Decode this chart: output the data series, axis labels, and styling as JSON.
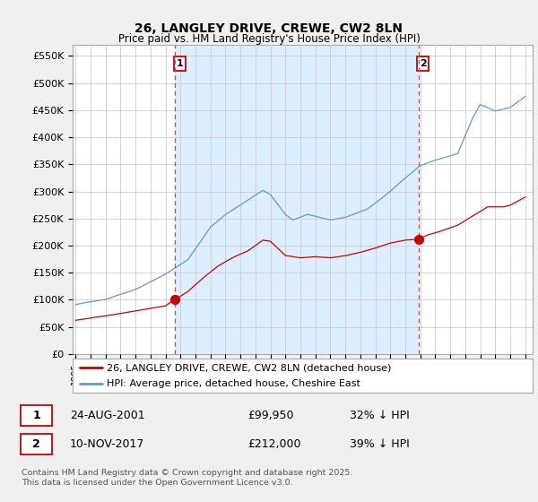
{
  "title": "26, LANGLEY DRIVE, CREWE, CW2 8LN",
  "subtitle": "Price paid vs. HM Land Registry's House Price Index (HPI)",
  "ylabel_ticks": [
    "£0",
    "£50K",
    "£100K",
    "£150K",
    "£200K",
    "£250K",
    "£300K",
    "£350K",
    "£400K",
    "£450K",
    "£500K",
    "£550K"
  ],
  "ytick_values": [
    0,
    50000,
    100000,
    150000,
    200000,
    250000,
    300000,
    350000,
    400000,
    450000,
    500000,
    550000
  ],
  "ylim": [
    0,
    570000
  ],
  "xlim_start": 1994.8,
  "xlim_end": 2025.5,
  "xticks": [
    1995,
    1996,
    1997,
    1998,
    1999,
    2000,
    2001,
    2002,
    2003,
    2004,
    2005,
    2006,
    2007,
    2008,
    2009,
    2010,
    2011,
    2012,
    2013,
    2014,
    2015,
    2016,
    2017,
    2018,
    2019,
    2020,
    2021,
    2022,
    2023,
    2024,
    2025
  ],
  "legend_line1": "26, LANGLEY DRIVE, CREWE, CW2 8LN (detached house)",
  "legend_line2": "HPI: Average price, detached house, Cheshire East",
  "sale1_date": "24-AUG-2001",
  "sale1_price": "£99,950",
  "sale1_hpi": "32% ↓ HPI",
  "sale2_date": "10-NOV-2017",
  "sale2_price": "£212,000",
  "sale2_hpi": "39% ↓ HPI",
  "footnote": "Contains HM Land Registry data © Crown copyright and database right 2025.\nThis data is licensed under the Open Government Licence v3.0.",
  "line_color_red": "#cc0000",
  "line_color_blue": "#6699cc",
  "shade_color": "#ddeeff",
  "dashed_vline_color": "#dd4444",
  "background_color": "#f0f0f0",
  "plot_bg_color": "#ffffff",
  "grid_color": "#cccccc",
  "sale1_x": 2001.64,
  "sale1_y": 99950,
  "sale2_x": 2017.87,
  "sale2_y": 212000,
  "vline1_x": 2001.64,
  "vline2_x": 2017.87
}
